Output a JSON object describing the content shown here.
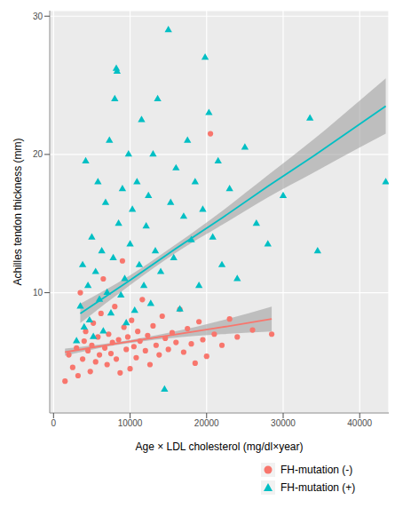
{
  "chart_data": {
    "type": "scatter",
    "x_label": "Age × LDL cholesterol (mg/dl×year)",
    "y_label": "Achilles tendon thickness (mm)",
    "xlim": [
      -500,
      43800
    ],
    "xticks": [
      0,
      10000,
      20000,
      30000,
      40000
    ],
    "ylim": [
      1.3,
      30.4
    ],
    "yticks": [
      10,
      20,
      30
    ],
    "grid": true,
    "legend": "bottom right",
    "series": [
      {
        "name": "FH-mutation (-)",
        "color": "#F8766D",
        "marker": "circle",
        "type": "scatter",
        "x": [
          1500,
          2000,
          2500,
          3000,
          3200,
          3500,
          3800,
          4000,
          4200,
          4500,
          4800,
          5000,
          5200,
          5500,
          5800,
          6000,
          6200,
          6500,
          6700,
          7000,
          7200,
          7500,
          7700,
          8000,
          8200,
          8500,
          8700,
          9000,
          9200,
          9500,
          9700,
          10000,
          10200,
          10500,
          10800,
          11000,
          11300,
          11600,
          12000,
          12300,
          12600,
          13000,
          13400,
          13800,
          14200,
          14600,
          15000,
          15500,
          16000,
          16500,
          17000,
          17500,
          18000,
          18500,
          19000,
          19500,
          20000,
          20500,
          21000,
          22000,
          23000,
          24000,
          26000,
          28500
        ],
        "values": [
          3.6,
          5.5,
          4.6,
          6.0,
          4.0,
          10.0,
          5.2,
          6.5,
          7.2,
          5.8,
          4.3,
          6.2,
          7.8,
          5.0,
          6.8,
          5.5,
          8.5,
          11.0,
          6.0,
          4.8,
          7.0,
          5.6,
          6.4,
          9.0,
          5.2,
          6.6,
          4.2,
          12.3,
          7.5,
          5.9,
          6.8,
          4.5,
          8.0,
          6.1,
          5.3,
          7.2,
          6.5,
          9.5,
          5.8,
          6.9,
          4.8,
          7.6,
          6.2,
          5.5,
          8.3,
          6.7,
          5.9,
          7.1,
          6.4,
          8.8,
          5.7,
          7.4,
          6.3,
          4.9,
          7.9,
          6.6,
          5.4,
          21.5,
          7.0,
          6.2,
          8.1,
          6.8,
          7.3,
          7.0
        ]
      },
      {
        "name": "FH-mutation (+)",
        "color": "#00BFC4",
        "marker": "triangle",
        "type": "scatter",
        "x": [
          3000,
          3500,
          3800,
          4000,
          4200,
          4500,
          4700,
          5000,
          5200,
          5500,
          5800,
          6000,
          6300,
          6500,
          6800,
          7000,
          7300,
          7500,
          7800,
          8000,
          8200,
          8300,
          8500,
          8800,
          9000,
          9300,
          9500,
          9800,
          10000,
          10300,
          10600,
          10900,
          11200,
          11500,
          11800,
          12100,
          12400,
          12700,
          13000,
          13300,
          13600,
          14000,
          14500,
          15000,
          15300,
          15700,
          16000,
          16500,
          17000,
          17500,
          18000,
          18500,
          19000,
          19500,
          19800,
          20300,
          20800,
          21500,
          22000,
          23000,
          24000,
          25000,
          26500,
          28000,
          30000,
          33500,
          34500,
          43400
        ],
        "values": [
          6.5,
          9.0,
          12.0,
          7.5,
          19.5,
          10.5,
          8.0,
          14.0,
          6.8,
          11.5,
          18.0,
          9.5,
          13.0,
          7.2,
          16.5,
          10.0,
          21.0,
          8.5,
          12.5,
          24.0,
          26.2,
          26.0,
          15.0,
          9.8,
          17.5,
          11.0,
          7.8,
          20.0,
          13.5,
          16.0,
          8.7,
          18.0,
          12.0,
          22.5,
          10.5,
          14.8,
          17.0,
          9.2,
          20.0,
          13.0,
          24.0,
          11.5,
          3.0,
          29.0,
          16.5,
          12.5,
          19.0,
          8.8,
          15.5,
          21.0,
          13.8,
          18.0,
          10.5,
          16.0,
          27.0,
          23.0,
          14.0,
          19.5,
          12.0,
          17.5,
          11.0,
          20.5,
          15.0,
          13.5,
          17.0,
          22.6,
          13.0,
          18.0
        ]
      },
      {
        "color": "#F8766D",
        "type": "line",
        "x": [
          1500,
          8000,
          15000,
          22000,
          28500
        ],
        "values": [
          5.7,
          6.3,
          6.9,
          7.5,
          8.1
        ],
        "ci_lower": [
          5.45,
          6.2,
          6.7,
          7.0,
          7.2
        ],
        "ci_upper": [
          5.95,
          6.4,
          7.1,
          8.0,
          9.0
        ]
      },
      {
        "color": "#00BFC4",
        "type": "line",
        "x": [
          3500,
          10000,
          16000,
          22000,
          28000,
          34000,
          40000,
          43400
        ],
        "values": [
          8.5,
          10.9,
          13.2,
          15.4,
          17.7,
          19.9,
          22.2,
          23.5
        ],
        "ci_lower": [
          7.8,
          10.55,
          12.9,
          14.9,
          16.9,
          18.7,
          20.5,
          21.5
        ],
        "ci_upper": [
          9.2,
          11.25,
          13.5,
          15.9,
          18.5,
          21.1,
          23.9,
          25.5
        ]
      }
    ]
  }
}
